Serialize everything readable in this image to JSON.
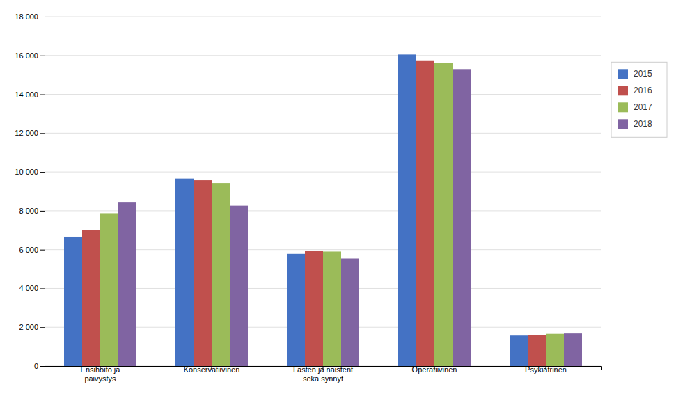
{
  "chart_data": {
    "type": "bar",
    "categories": [
      "Ensihoito ja\npäivystys",
      "Konservatiivinen",
      "Lasten ja naistent\nsekä synnyt",
      "Operatiivinen",
      "Psykiatrinen"
    ],
    "series": [
      {
        "name": "2015",
        "color": "#4472C4",
        "values": [
          6670,
          9658,
          5780,
          16050,
          1570
        ]
      },
      {
        "name": "2016",
        "color": "#C0504D",
        "values": [
          7010,
          9571,
          5950,
          15750,
          1590
        ]
      },
      {
        "name": "2017",
        "color": "#9BBB59",
        "values": [
          7873,
          9427,
          5900,
          15620,
          1660
        ]
      },
      {
        "name": "2018",
        "color": "#8064A2",
        "values": [
          8422,
          8260,
          5540,
          15300,
          1680
        ]
      }
    ],
    "ylim": [
      0,
      18000
    ],
    "yticks": [
      0,
      {
        "value": 2000,
        "label": "2 000"
      },
      {
        "value": 4000,
        "label": "4 000"
      },
      {
        "value": 6000,
        "label": "6 000"
      },
      {
        "value": 8000,
        "label": "8 000"
      },
      {
        "value": 10000,
        "label": "10 000"
      },
      {
        "value": 12000,
        "label": "12 000"
      },
      {
        "value": 14000,
        "label": "14 000"
      },
      {
        "value": 16000,
        "label": "16 000"
      },
      {
        "value": 18000,
        "label": "18 000"
      }
    ],
    "grid": true,
    "legend": "right"
  }
}
